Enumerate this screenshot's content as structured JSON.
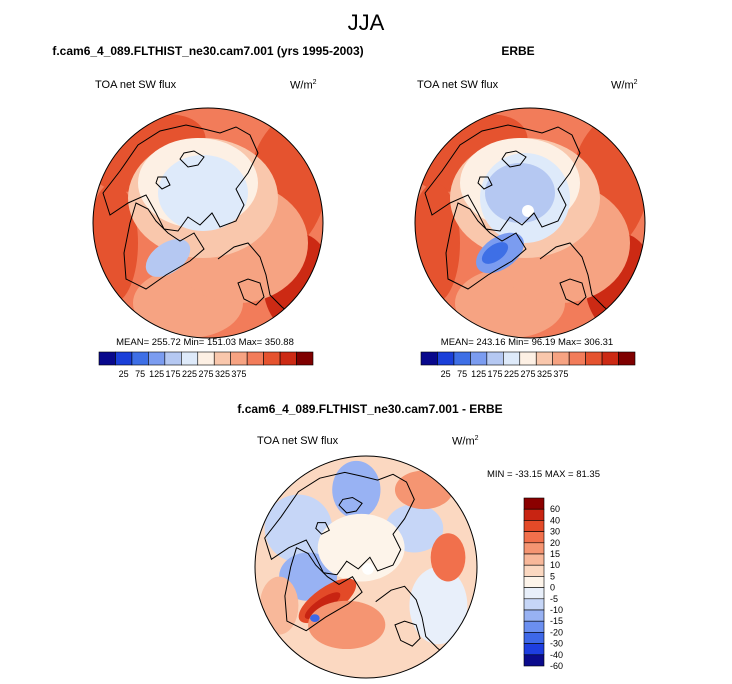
{
  "figure": {
    "title": "JJA"
  },
  "colors": {
    "absolute_scale": [
      "#08088c",
      "#1a3fd9",
      "#3e6fe6",
      "#7b9cf0",
      "#b5c8f2",
      "#deeafa",
      "#fdf0e4",
      "#f9c7ac",
      "#f6a382",
      "#f27c5a",
      "#e5532f",
      "#cc2a14",
      "#7f0000"
    ],
    "diff_scale": [
      "#0b0b8c",
      "#1e3ee0",
      "#3e68e8",
      "#6b8ff0",
      "#98b2f3",
      "#c6d6f7",
      "#e8effa",
      "#fdf4ea",
      "#fbd8c1",
      "#f8b89a",
      "#f59572",
      "#f1704c",
      "#e34a28",
      "#c82412",
      "#8b0000"
    ],
    "outline": "#000000"
  },
  "chart_data": [
    {
      "type": "heatmap",
      "projection": "polar-stereographic-north",
      "title": "f.cam6_4_089.FLTHIST_ne30.cam7.001 (yrs 1995-2003)",
      "left_label": "TOA net SW flux",
      "units": "W/m",
      "units_exp": "2",
      "stats": {
        "mean": "255.72",
        "min": "151.03",
        "max": "350.88"
      },
      "stats_text": "MEAN= 255.72  Min= 151.03  Max= 350.88",
      "colorbar": {
        "orientation": "horizontal",
        "ticks": [
          "25",
          "75",
          "125",
          "175",
          "225",
          "275",
          "325",
          "375"
        ]
      }
    },
    {
      "type": "heatmap",
      "projection": "polar-stereographic-north",
      "title": "ERBE",
      "left_label": "TOA net SW flux",
      "units": "W/m",
      "units_exp": "2",
      "stats": {
        "mean": "243.16",
        "min": "96.19",
        "max": "306.31"
      },
      "stats_text": "MEAN= 243.16  Min=  96.19  Max= 306.31",
      "colorbar": {
        "orientation": "horizontal",
        "ticks": [
          "25",
          "75",
          "125",
          "175",
          "225",
          "275",
          "325",
          "375"
        ]
      }
    },
    {
      "type": "heatmap",
      "projection": "polar-stereographic-north",
      "title": "f.cam6_4_089.FLTHIST_ne30.cam7.001 - ERBE",
      "left_label": "TOA net SW flux",
      "units": "W/m",
      "units_exp": "2",
      "stats": {
        "min": "-33.15",
        "max": "81.35"
      },
      "stats_text": "MIN = -33.15 MAX =  81.35",
      "colorbar": {
        "orientation": "vertical",
        "ticks": [
          "60",
          "40",
          "30",
          "20",
          "15",
          "10",
          "5",
          "0",
          "-5",
          "-10",
          "-15",
          "-20",
          "-30",
          "-40",
          "-60"
        ]
      }
    }
  ]
}
